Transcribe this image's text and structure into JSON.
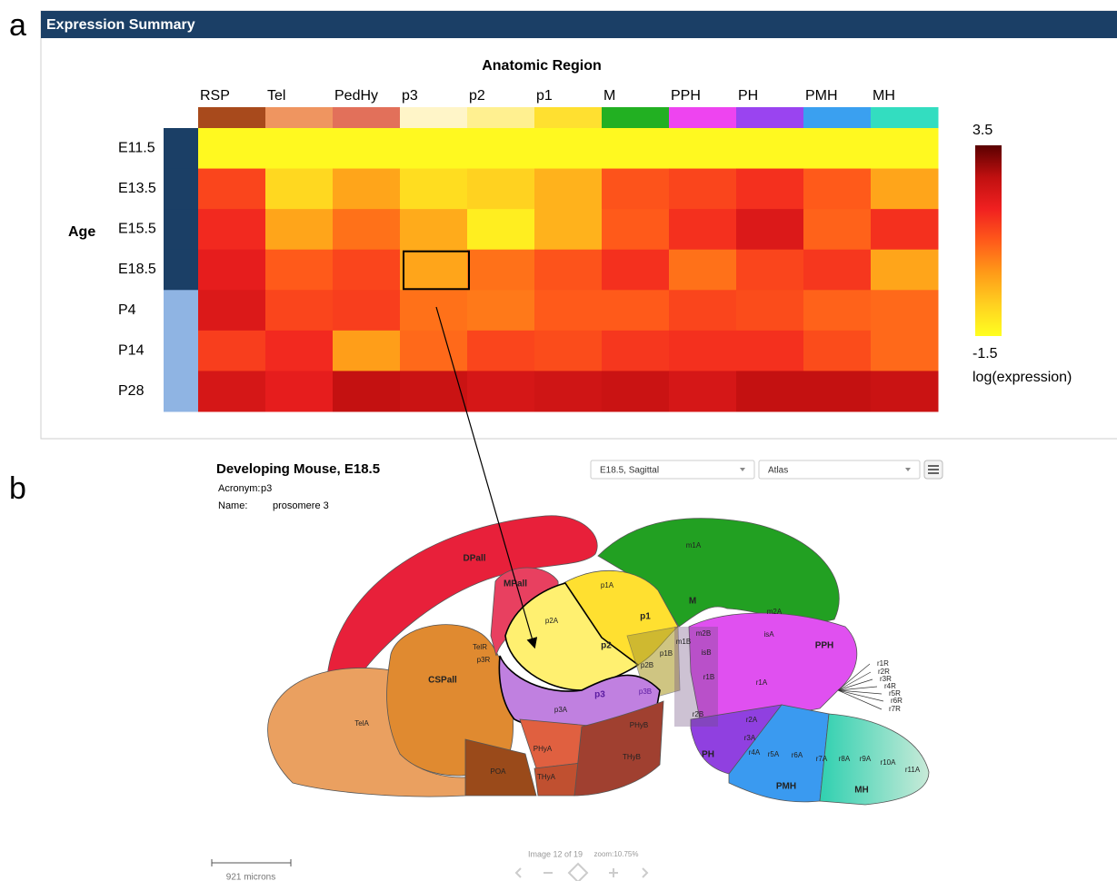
{
  "chart_data": {
    "type": "heatmap",
    "title": "Expression Summary",
    "x_label": "Anatomic Region",
    "y_label": "Age",
    "categories": [
      "RSP",
      "Tel",
      "PedHy",
      "p3",
      "p2",
      "p1",
      "M",
      "PPH",
      "PH",
      "PMH",
      "MH"
    ],
    "category_colors": [
      "#a84a1c",
      "#ef9560",
      "#e2705a",
      "#fff5c8",
      "#fff090",
      "#ffe030",
      "#22b022",
      "#ee44f0",
      "#9a44f0",
      "#3aa0f0",
      "#33ddc0"
    ],
    "rows": [
      "E11.5",
      "E13.5",
      "E15.5",
      "E18.5",
      "P4",
      "P14",
      "P28"
    ],
    "row_colors": [
      "#1b3f66",
      "#1b3f66",
      "#1b3f66",
      "#1b3f66",
      "#8fb4e3",
      "#8fb4e3",
      "#8fb4e3"
    ],
    "values": [
      [
        -1.4,
        -1.4,
        -1.4,
        -1.4,
        -1.4,
        -1.4,
        -1.4,
        -1.4,
        -1.4,
        -1.4,
        -1.4
      ],
      [
        1.3,
        -0.8,
        0.0,
        -0.9,
        -0.7,
        -0.2,
        1.1,
        1.3,
        1.6,
        1.0,
        0.0
      ],
      [
        1.7,
        0.0,
        0.7,
        -0.1,
        -1.2,
        -0.2,
        1.0,
        1.6,
        2.2,
        0.9,
        1.6
      ],
      [
        2.0,
        1.0,
        1.3,
        0.0,
        0.7,
        1.1,
        1.6,
        0.7,
        1.3,
        1.5,
        0.0
      ],
      [
        2.2,
        1.3,
        1.4,
        0.7,
        0.6,
        1.0,
        1.0,
        1.3,
        1.2,
        0.9,
        0.8
      ],
      [
        1.4,
        1.7,
        0.1,
        0.8,
        1.3,
        1.2,
        1.5,
        1.6,
        1.6,
        1.2,
        0.8
      ],
      [
        2.3,
        2.0,
        2.6,
        2.5,
        2.3,
        2.4,
        2.5,
        2.3,
        2.6,
        2.6,
        2.5
      ]
    ],
    "zlim": [
      -1.5,
      3.5
    ],
    "zticks": [
      -1.5,
      3.5
    ],
    "colorbar_label": "log(expression)",
    "colormap": [
      "#ffff20",
      "#ffd020",
      "#ff9a18",
      "#ff5a1a",
      "#f02020",
      "#c01010",
      "#5a0000"
    ]
  },
  "panel_labels": [
    "a",
    "b"
  ],
  "viewer": {
    "title": "Developing Mouse, E18.5",
    "fields": [
      {
        "label": "Acronym:",
        "value": "p3"
      },
      {
        "label": "Name:",
        "value": "prosomere 3"
      }
    ],
    "dropdowns": [
      "E18.5, Sagittal",
      "Atlas"
    ],
    "scale_bar": "921 microns",
    "image_counter": "Image 12 of 19",
    "zoom": "zoom:10.75%"
  },
  "atlas_labels": [
    "DPall",
    "MPall",
    "CSPall",
    "TelA",
    "TelR",
    "p3R",
    "p2A",
    "p1A",
    "p1",
    "p2",
    "p2B",
    "p1B",
    "m1B",
    "m2B",
    "isB",
    "m1A",
    "M",
    "m2A",
    "isA",
    "PPH",
    "r1B",
    "r1A",
    "r2B",
    "r2A",
    "r3A",
    "r4A",
    "r5A",
    "r6A",
    "r7A",
    "r8A",
    "r9A",
    "r10A",
    "r11A",
    "PH",
    "PMH",
    "MH",
    "p3",
    "p3A",
    "p3B",
    "PHyA",
    "PHyB",
    "THyA",
    "THyB",
    "POA",
    "r1R",
    "r2R",
    "r3R",
    "r4R",
    "r5R",
    "r6R",
    "r7R"
  ]
}
